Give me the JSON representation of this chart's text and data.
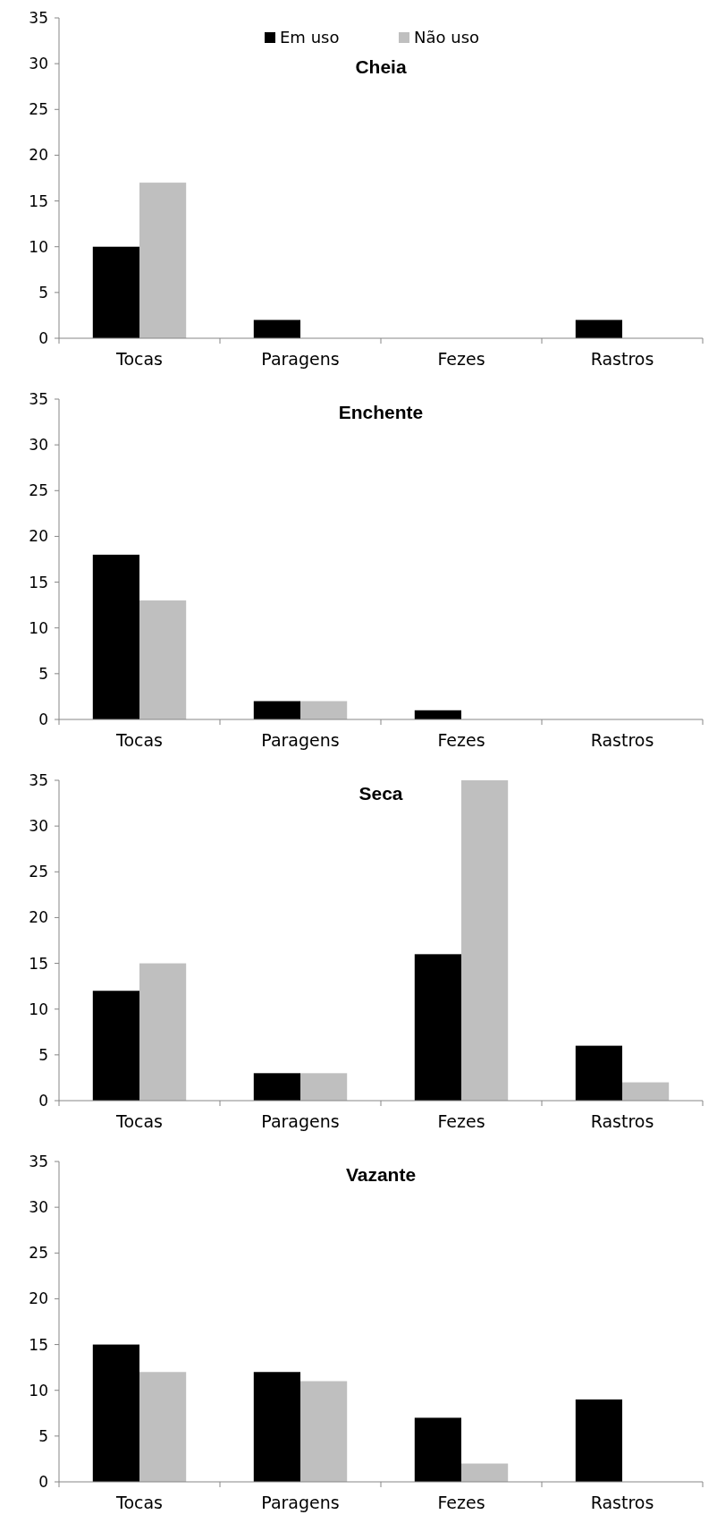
{
  "chart_data": [
    {
      "type": "bar",
      "title": "Cheia",
      "categories": [
        "Tocas",
        "Paragens",
        "Fezes",
        "Rastros"
      ],
      "series": [
        {
          "name": "Em uso",
          "color": "#000000",
          "values": [
            10,
            2,
            0,
            2
          ]
        },
        {
          "name": "Não uso",
          "color": "#bfbfbf",
          "values": [
            17,
            0,
            0,
            0
          ]
        }
      ],
      "ylim": [
        0,
        35
      ],
      "yticks": [
        0,
        5,
        10,
        15,
        20,
        25,
        30,
        35
      ],
      "grid": false,
      "legend": "top"
    },
    {
      "type": "bar",
      "title": "Enchente",
      "categories": [
        "Tocas",
        "Paragens",
        "Fezes",
        "Rastros"
      ],
      "series": [
        {
          "color": "#000000",
          "values": [
            18,
            2,
            1,
            0
          ]
        },
        {
          "color": "#bfbfbf",
          "values": [
            13,
            2,
            0,
            0
          ]
        }
      ],
      "ylim": [
        0,
        35
      ],
      "yticks": [
        0,
        5,
        10,
        15,
        20,
        25,
        30,
        35
      ],
      "grid": false
    },
    {
      "type": "bar",
      "title": "Seca",
      "categories": [
        "Tocas",
        "Paragens",
        "Fezes",
        "Rastros"
      ],
      "series": [
        {
          "color": "#000000",
          "values": [
            12,
            3,
            16,
            6
          ]
        },
        {
          "color": "#bfbfbf",
          "values": [
            15,
            3,
            35,
            2
          ]
        }
      ],
      "ylim": [
        0,
        35
      ],
      "yticks": [
        0,
        5,
        10,
        15,
        20,
        25,
        30,
        35
      ],
      "grid": false
    },
    {
      "type": "bar",
      "title": "Vazante",
      "categories": [
        "Tocas",
        "Paragens",
        "Fezes",
        "Rastros"
      ],
      "series": [
        {
          "color": "#000000",
          "values": [
            15,
            12,
            7,
            9
          ]
        },
        {
          "color": "#bfbfbf",
          "values": [
            12,
            11,
            2,
            0
          ]
        }
      ],
      "ylim": [
        0,
        35
      ],
      "yticks": [
        0,
        5,
        10,
        15,
        20,
        25,
        30,
        35
      ],
      "grid": false
    }
  ]
}
